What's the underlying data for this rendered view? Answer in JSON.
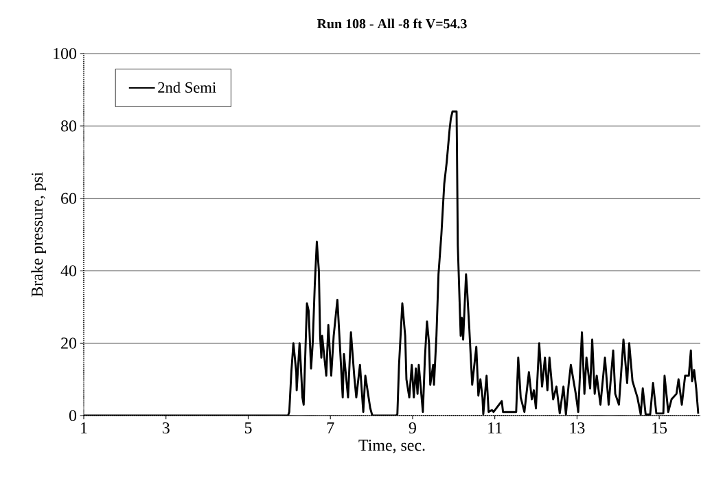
{
  "chart_data": {
    "type": "line",
    "title": "Run 108 - All -8 ft V=54.3",
    "xlabel": "Time, sec.",
    "ylabel": "Brake pressure, psi",
    "xlim": [
      1,
      16
    ],
    "ylim": [
      0,
      100
    ],
    "xticks": [
      1,
      3,
      5,
      7,
      9,
      11,
      13,
      15
    ],
    "yticks": [
      0,
      20,
      40,
      60,
      80,
      100
    ],
    "grid": "y",
    "legend": "top left",
    "marker": "none",
    "line_style": "solid",
    "series": [
      {
        "name": "2nd Semi",
        "color": "#000000",
        "x": [
          1,
          5.97,
          6.0,
          6.05,
          6.1,
          6.17,
          6.18,
          6.25,
          6.28,
          6.32,
          6.35,
          6.43,
          6.47,
          6.53,
          6.57,
          6.62,
          6.67,
          6.72,
          6.75,
          6.78,
          6.8,
          6.9,
          6.95,
          7.02,
          7.08,
          7.17,
          7.2,
          7.3,
          7.33,
          7.43,
          7.5,
          7.58,
          7.63,
          7.72,
          7.8,
          7.85,
          7.97,
          8.02,
          8.6,
          8.63,
          8.67,
          8.75,
          8.82,
          8.85,
          8.92,
          8.98,
          9.03,
          9.08,
          9.12,
          9.15,
          9.25,
          9.3,
          9.35,
          9.4,
          9.43,
          9.5,
          9.52,
          9.58,
          9.63,
          9.7,
          9.77,
          9.83,
          9.9,
          9.93,
          9.97,
          10.07,
          10.08,
          10.1,
          10.17,
          10.2,
          10.23,
          10.3,
          10.33,
          10.38,
          10.45,
          10.55,
          10.6,
          10.65,
          10.7,
          10.72,
          10.8,
          10.85,
          10.93,
          10.97,
          11.17,
          11.2,
          11.3,
          11.52,
          11.57,
          11.63,
          11.72,
          11.83,
          11.9,
          11.95,
          12.0,
          12.08,
          12.15,
          12.22,
          12.28,
          12.33,
          12.42,
          12.5,
          12.58,
          12.67,
          12.73,
          12.8,
          12.85,
          12.97,
          13.03,
          13.12,
          13.18,
          13.23,
          13.32,
          13.37,
          13.43,
          13.48,
          13.57,
          13.68,
          13.77,
          13.88,
          13.93,
          14.02,
          14.13,
          14.22,
          14.27,
          14.35,
          14.47,
          14.55,
          14.6,
          14.67,
          14.78,
          14.85,
          14.93,
          15.1,
          15.13,
          15.22,
          15.3,
          15.42,
          15.47,
          15.55,
          15.63,
          15.72,
          15.77,
          15.8,
          15.85,
          15.9,
          15.95
        ],
        "values": [
          0,
          0,
          1,
          12,
          20,
          12,
          7,
          20,
          14,
          5,
          3,
          31,
          29,
          13,
          20,
          36,
          48,
          40,
          22,
          16,
          22,
          11,
          25,
          11,
          22,
          32,
          26,
          5,
          17,
          5,
          23,
          11,
          5,
          14,
          1,
          11,
          2,
          0,
          0,
          0.4,
          14,
          31,
          22,
          10,
          5,
          14,
          5,
          13,
          6,
          14,
          1,
          16,
          26,
          20,
          8.5,
          14,
          8.5,
          22,
          39,
          50,
          64,
          70,
          79,
          82,
          84,
          84,
          73,
          47,
          22,
          27,
          21,
          39,
          34,
          24,
          8.5,
          19,
          5.5,
          10,
          5,
          0.4,
          11,
          1,
          1.5,
          1,
          4,
          1,
          1,
          1,
          16,
          5,
          1,
          12,
          4.5,
          7,
          2,
          20,
          8,
          16,
          7,
          16,
          4.5,
          8,
          0.6,
          8,
          0.3,
          9,
          14,
          6,
          1,
          23,
          6,
          16,
          7.5,
          21,
          6,
          11,
          3,
          16,
          3,
          18,
          6,
          3,
          21,
          9,
          20,
          9.5,
          5,
          0.3,
          7.5,
          0.3,
          0.3,
          9,
          0.6,
          0.6,
          11,
          1,
          4.5,
          6,
          10,
          3,
          11,
          11,
          18,
          9.5,
          12.6,
          7.5,
          0.5
        ]
      }
    ]
  }
}
